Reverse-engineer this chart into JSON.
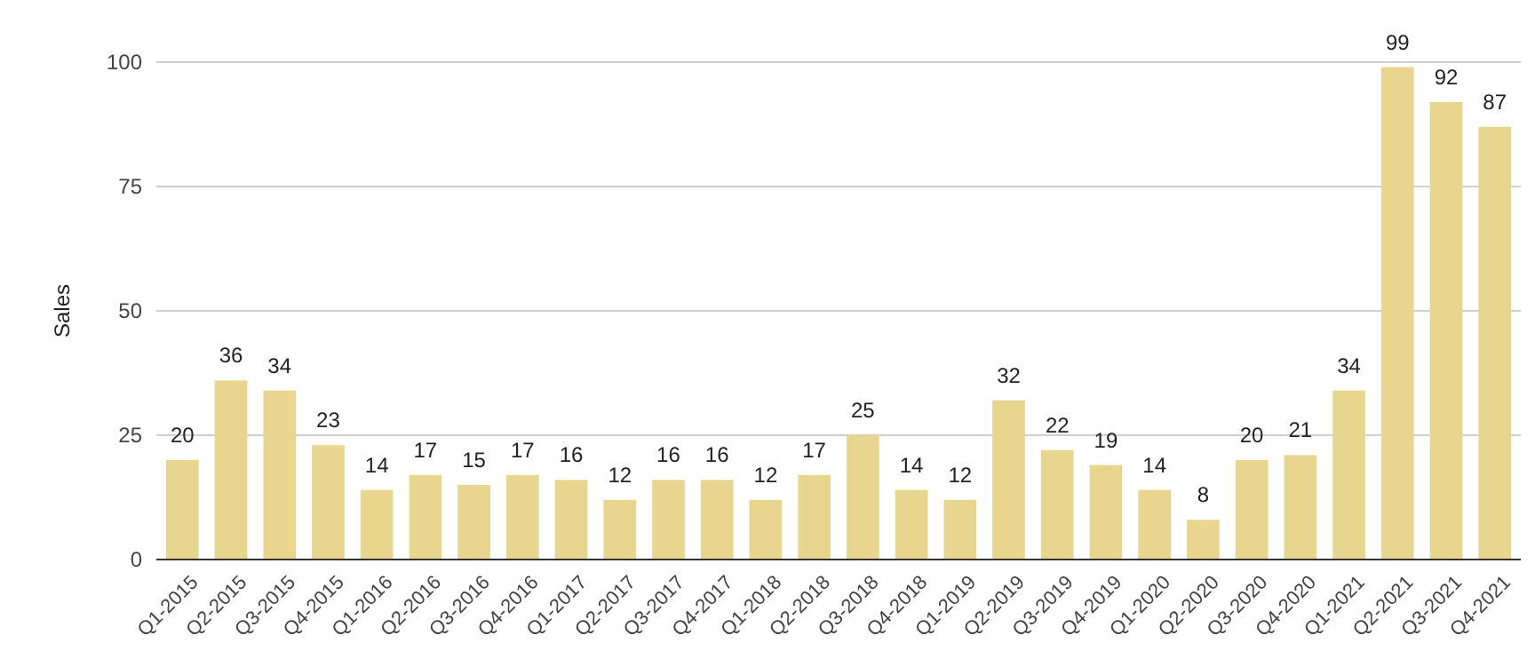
{
  "chart_data": {
    "type": "bar",
    "ylabel": "Sales",
    "categories": [
      "Q1-2015",
      "Q2-2015",
      "Q3-2015",
      "Q4-2015",
      "Q1-2016",
      "Q2-2016",
      "Q3-2016",
      "Q4-2016",
      "Q1-2017",
      "Q2-2017",
      "Q3-2017",
      "Q4-2017",
      "Q1-2018",
      "Q2-2018",
      "Q3-2018",
      "Q4-2018",
      "Q1-2019",
      "Q2-2019",
      "Q3-2019",
      "Q4-2019",
      "Q1-2020",
      "Q2-2020",
      "Q3-2020",
      "Q4-2020",
      "Q1-2021",
      "Q2-2021",
      "Q3-2021",
      "Q4-2021"
    ],
    "values": [
      20,
      36,
      34,
      23,
      14,
      17,
      15,
      17,
      16,
      12,
      16,
      16,
      12,
      17,
      25,
      14,
      12,
      32,
      22,
      19,
      14,
      8,
      20,
      21,
      34,
      99,
      92,
      87
    ],
    "color": "#e8d68f",
    "ylim": [
      0,
      100
    ],
    "yticks": [
      0,
      25,
      50,
      75,
      100
    ],
    "grid": "y",
    "data_labels": true
  }
}
